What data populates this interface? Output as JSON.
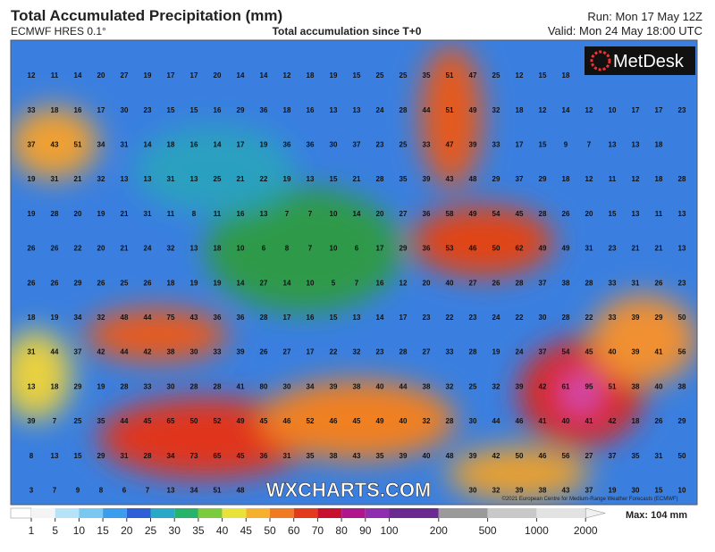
{
  "header": {
    "title": "Total Accumulated Precipitation (mm)",
    "model": "ECMWF HRES 0.1°",
    "subtitle": "Total accumulation since T+0",
    "run": "Run: Mon 17 May 12Z",
    "valid": "Valid: Mon 24 May 18:00 UTC"
  },
  "logo": "MetDesk",
  "watermark": "WXCHARTS.COM",
  "copyright": "©2021 European Centre for Medium-Range Weather Forecasts (ECMWF)",
  "grid": [
    [
      12,
      11,
      14,
      20,
      27,
      19,
      17,
      17,
      20,
      14,
      14,
      12,
      18,
      19,
      15,
      25,
      25,
      35,
      51,
      47,
      25,
      12,
      15,
      18,
      null,
      null,
      null,
      null,
      null
    ],
    [
      33,
      18,
      16,
      17,
      30,
      23,
      15,
      15,
      16,
      29,
      36,
      18,
      16,
      13,
      13,
      24,
      28,
      44,
      51,
      49,
      32,
      18,
      12,
      14,
      12,
      10,
      17,
      17,
      23
    ],
    [
      37,
      43,
      51,
      34,
      31,
      14,
      18,
      16,
      14,
      17,
      19,
      36,
      36,
      30,
      37,
      23,
      25,
      33,
      47,
      39,
      33,
      17,
      15,
      9,
      7,
      13,
      13,
      18,
      null
    ],
    [
      19,
      31,
      21,
      32,
      13,
      13,
      31,
      13,
      25,
      21,
      22,
      19,
      13,
      15,
      21,
      28,
      35,
      39,
      43,
      48,
      29,
      37,
      29,
      18,
      12,
      11,
      12,
      18,
      28
    ],
    [
      19,
      28,
      20,
      19,
      21,
      31,
      11,
      8,
      11,
      16,
      13,
      7,
      7,
      10,
      14,
      20,
      27,
      36,
      58,
      49,
      54,
      45,
      28,
      26,
      20,
      15,
      13,
      11,
      13
    ],
    [
      26,
      26,
      22,
      20,
      21,
      24,
      32,
      13,
      18,
      10,
      6,
      8,
      7,
      10,
      6,
      17,
      29,
      36,
      53,
      46,
      50,
      62,
      49,
      49,
      31,
      23,
      21,
      21,
      13
    ],
    [
      26,
      26,
      29,
      26,
      25,
      26,
      18,
      19,
      19,
      14,
      27,
      14,
      10,
      5,
      7,
      16,
      12,
      20,
      40,
      27,
      26,
      28,
      37,
      38,
      28,
      33,
      31,
      26,
      23
    ],
    [
      18,
      19,
      34,
      32,
      48,
      44,
      75,
      43,
      36,
      36,
      28,
      17,
      16,
      15,
      13,
      14,
      17,
      23,
      22,
      23,
      24,
      22,
      30,
      28,
      22,
      33,
      39,
      29,
      50
    ],
    [
      31,
      44,
      37,
      42,
      44,
      42,
      38,
      30,
      33,
      39,
      26,
      27,
      17,
      22,
      32,
      23,
      28,
      27,
      33,
      28,
      19,
      24,
      37,
      54,
      45,
      40,
      39,
      41,
      56
    ],
    [
      13,
      18,
      29,
      19,
      28,
      33,
      30,
      28,
      28,
      41,
      80,
      30,
      34,
      39,
      38,
      40,
      44,
      38,
      32,
      25,
      32,
      39,
      42,
      61,
      95,
      51,
      38,
      40,
      38
    ],
    [
      39,
      7,
      25,
      35,
      44,
      45,
      65,
      50,
      52,
      49,
      45,
      46,
      52,
      46,
      45,
      49,
      40,
      32,
      28,
      30,
      44,
      46,
      41,
      40,
      41,
      42,
      18,
      26,
      29
    ],
    [
      8,
      13,
      15,
      29,
      31,
      28,
      34,
      73,
      65,
      45,
      36,
      31,
      35,
      38,
      43,
      35,
      39,
      40,
      48,
      39,
      42,
      50,
      46,
      56,
      27,
      37,
      35,
      31,
      50
    ],
    [
      3,
      7,
      9,
      8,
      6,
      7,
      13,
      34,
      51,
      48,
      null,
      null,
      null,
      null,
      null,
      null,
      null,
      null,
      null,
      30,
      32,
      39,
      38,
      43,
      37,
      19,
      30,
      15,
      10
    ]
  ],
  "colorbar": {
    "labels": [
      1,
      5,
      10,
      15,
      20,
      25,
      30,
      35,
      40,
      45,
      50,
      60,
      70,
      80,
      90,
      100,
      200,
      500,
      1000,
      2000
    ],
    "colors": [
      "#f4f4f4",
      "#b6e3f7",
      "#79c8f2",
      "#3d9ded",
      "#2e5fd6",
      "#2aa8c8",
      "#27b46a",
      "#7ccb3c",
      "#e8e23a",
      "#f5b12d",
      "#f07a22",
      "#e33a1c",
      "#c8102e",
      "#b0168c",
      "#8f2fb0",
      "#6b2a90",
      "#9a9a9a",
      "#c8c8c8",
      "#e2e2e2"
    ],
    "max": "Max: 104 mm"
  }
}
